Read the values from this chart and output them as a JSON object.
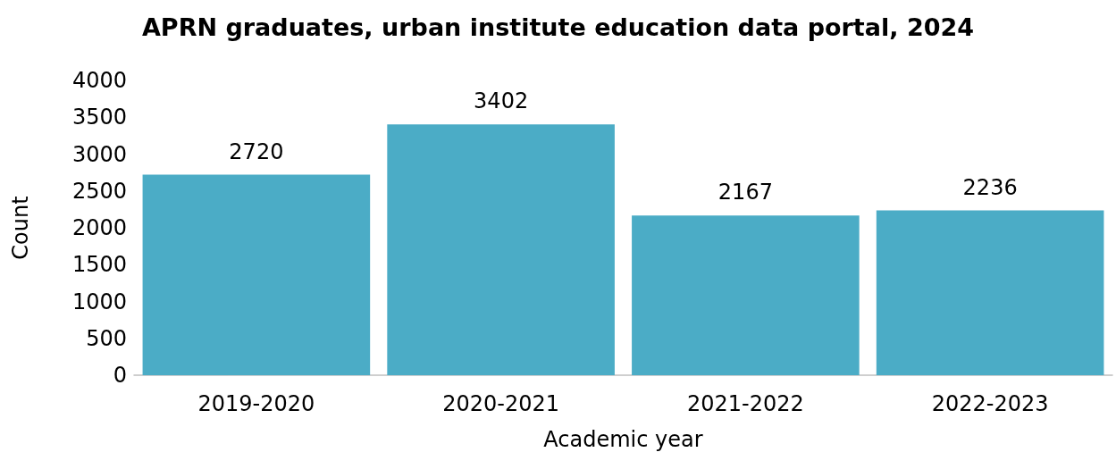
{
  "chart_data": {
    "type": "bar",
    "title": "APRN graduates, urban institute education data portal, 2024",
    "xlabel": "Academic year",
    "ylabel": "Count",
    "categories": [
      "2019-2020",
      "2020-2021",
      "2021-2022",
      "2022-2023"
    ],
    "values": [
      2720,
      3402,
      2167,
      2236
    ],
    "color": "#4bacc6",
    "ylim": [
      0,
      4000
    ],
    "yticks": [
      0,
      500,
      1000,
      1500,
      2000,
      2500,
      3000,
      3500,
      4000
    ],
    "grid": false,
    "data_labels": true
  }
}
